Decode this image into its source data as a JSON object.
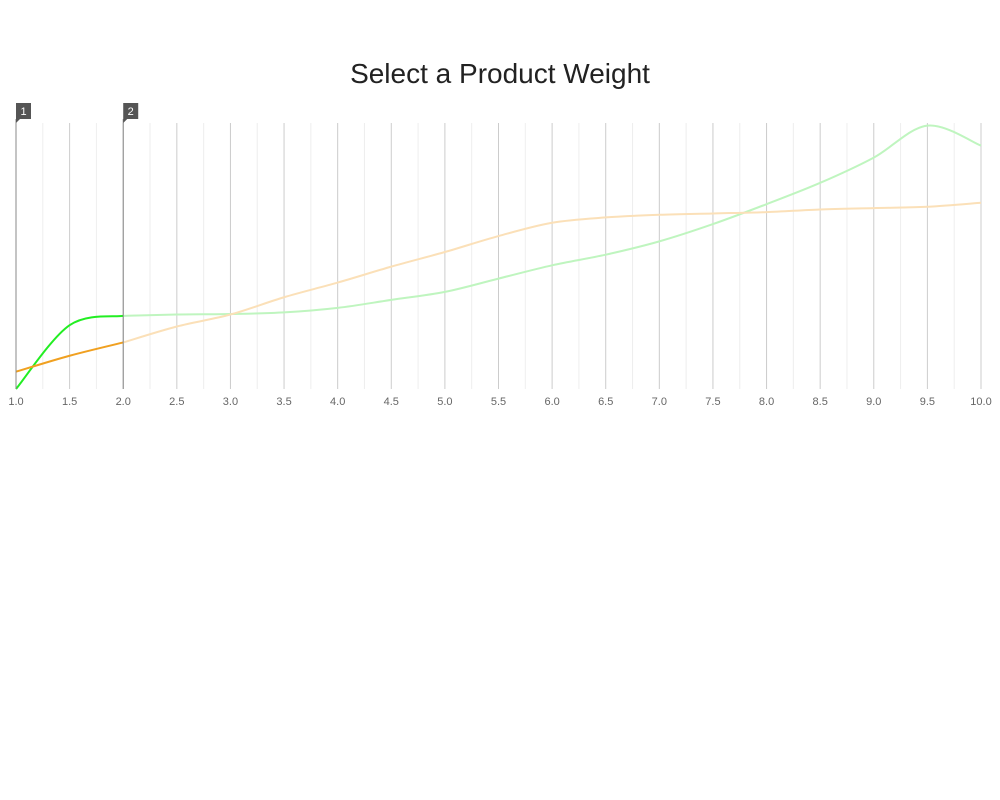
{
  "chart_data": {
    "type": "line",
    "title": "Select a Product Weight",
    "xlabel": "",
    "ylabel": "",
    "xlim": [
      1.0,
      10.0
    ],
    "ylim": [
      0,
      100
    ],
    "x_ticks": [
      "1.0",
      "1.5",
      "2.0",
      "2.5",
      "3.0",
      "3.5",
      "4.0",
      "4.5",
      "5.0",
      "5.5",
      "6.0",
      "6.5",
      "7.0",
      "7.5",
      "8.0",
      "8.5",
      "9.0",
      "9.5",
      "10.0"
    ],
    "grid": true,
    "legend": "none",
    "selection": {
      "from": 1.0,
      "to": 2.0,
      "markers": [
        "1",
        "2"
      ]
    },
    "series": [
      {
        "color": "#22ee22",
        "faded_color": "#bff5bf",
        "x": [
          1.0,
          1.5,
          2.0,
          2.5,
          3.0,
          3.5,
          4.0,
          4.5,
          5.0,
          5.5,
          6.0,
          6.5,
          7.0,
          7.5,
          8.0,
          8.5,
          9.0,
          9.5,
          10.0
        ],
        "y": [
          0,
          24,
          27.5,
          28,
          28.2,
          28.8,
          30.5,
          33.5,
          36.5,
          41.5,
          46.5,
          50.5,
          55.5,
          62,
          69.5,
          77.5,
          87,
          99,
          91.5
        ]
      },
      {
        "color": "#f0a020",
        "faded_color": "#fbe0b8",
        "x": [
          1.0,
          1.5,
          2.0,
          2.5,
          3.0,
          3.5,
          4.0,
          4.5,
          5.0,
          5.5,
          6.0,
          6.5,
          7.0,
          7.5,
          8.0,
          8.5,
          9.0,
          9.5,
          10.0
        ],
        "y": [
          6.5,
          12.5,
          17.5,
          23.5,
          28,
          34.5,
          40,
          46,
          51.5,
          57.5,
          62.5,
          64.5,
          65.5,
          66,
          66.5,
          67.5,
          68,
          68.5,
          70
        ]
      }
    ]
  }
}
